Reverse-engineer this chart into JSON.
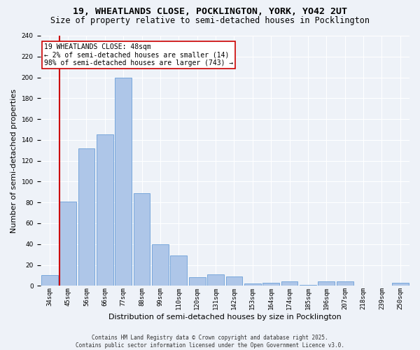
{
  "title": "19, WHEATLANDS CLOSE, POCKLINGTON, YORK, YO42 2UT",
  "subtitle": "Size of property relative to semi-detached houses in Pocklington",
  "xlabel": "Distribution of semi-detached houses by size in Pocklington",
  "ylabel": "Number of semi-detached properties",
  "categories": [
    "34sqm",
    "45sqm",
    "56sqm",
    "66sqm",
    "77sqm",
    "88sqm",
    "99sqm",
    "110sqm",
    "120sqm",
    "131sqm",
    "142sqm",
    "153sqm",
    "164sqm",
    "174sqm",
    "185sqm",
    "196sqm",
    "207sqm",
    "218sqm",
    "239sqm",
    "250sqm"
  ],
  "values": [
    10,
    81,
    132,
    145,
    200,
    89,
    40,
    29,
    8,
    11,
    9,
    2,
    3,
    4,
    1,
    4,
    4,
    0,
    0,
    3
  ],
  "bar_color": "#aec6e8",
  "bar_edge_color": "#6a9fd8",
  "vline_color": "#cc0000",
  "annotation_title": "19 WHEATLANDS CLOSE: 48sqm",
  "annotation_line1": "← 2% of semi-detached houses are smaller (14)",
  "annotation_line2": "98% of semi-detached houses are larger (743) →",
  "annotation_box_color": "#ffffff",
  "annotation_box_edge": "#cc0000",
  "ylim": [
    0,
    240
  ],
  "yticks": [
    0,
    20,
    40,
    60,
    80,
    100,
    120,
    140,
    160,
    180,
    200,
    220,
    240
  ],
  "footer": "Contains HM Land Registry data © Crown copyright and database right 2025.\nContains public sector information licensed under the Open Government Licence v3.0.",
  "bg_color": "#eef2f8",
  "grid_color": "#ffffff",
  "title_fontsize": 9.5,
  "subtitle_fontsize": 8.5,
  "tick_fontsize": 6.5,
  "label_fontsize": 8,
  "footer_fontsize": 5.5,
  "annotation_fontsize": 7
}
